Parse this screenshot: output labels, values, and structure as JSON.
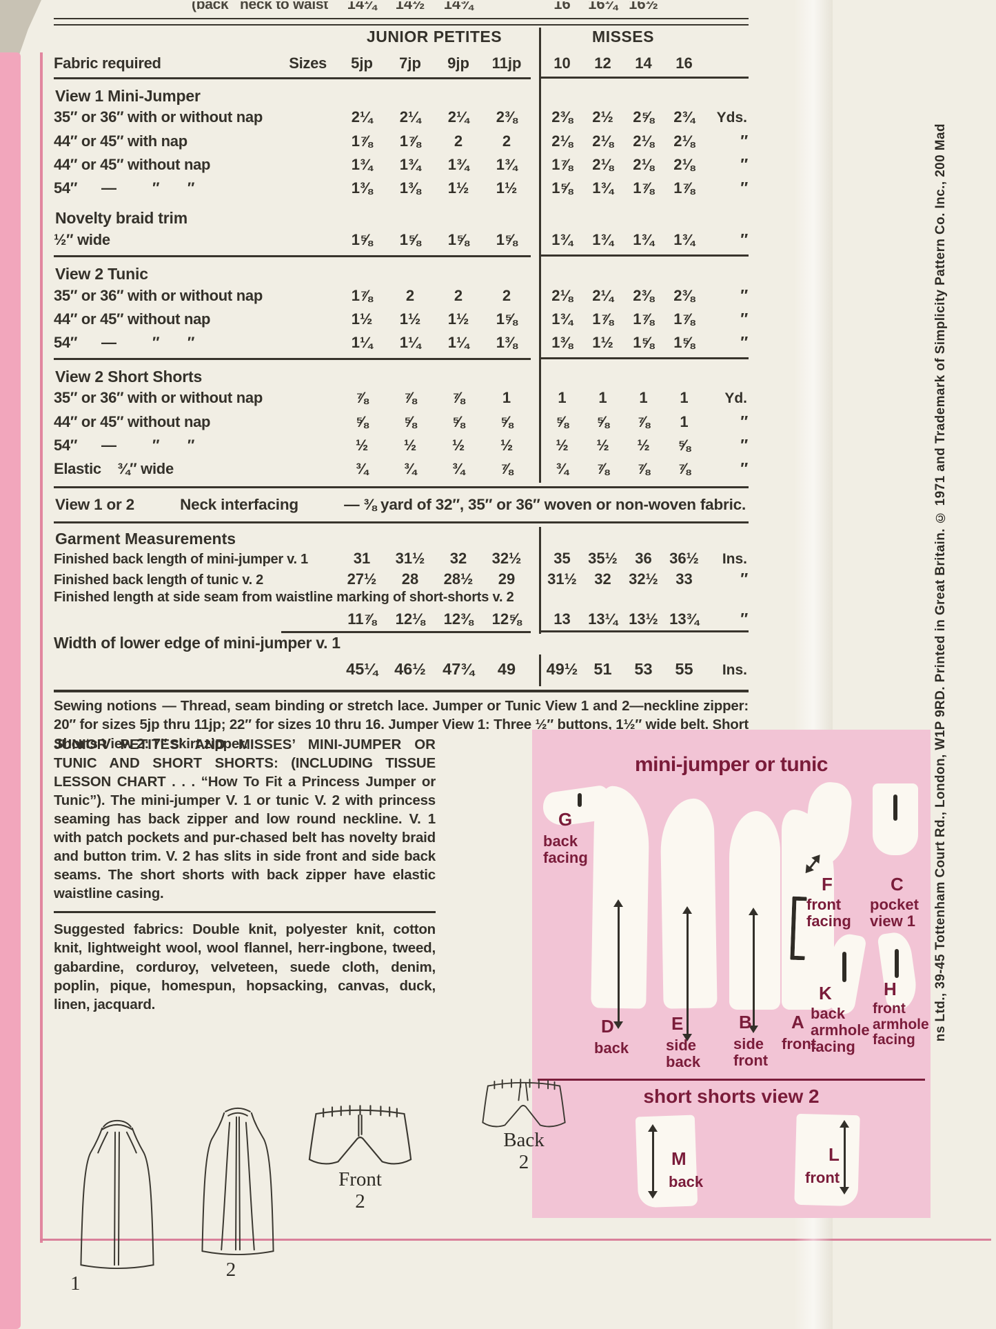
{
  "colors": {
    "paper": "#f1eee4",
    "ink": "#34312a",
    "edge_pink": "#f2a6bc",
    "frame_pink": "#e2869f",
    "panel_pink": "#f2c4d5",
    "maroon": "#7a1c3a"
  },
  "top_partial": {
    "label": "(back   neck to waist",
    "jp": [
      "14¼",
      "14½",
      "14¾"
    ],
    "misses": [
      "16",
      "16¼",
      "16½"
    ]
  },
  "fabric_table": {
    "jp_header": "JUNIOR PETITES",
    "misses_header": "MISSES",
    "label_header": "Fabric required",
    "sizes_header": "Sizes",
    "jp_sizes": [
      "5jp",
      "7jp",
      "9jp",
      "11jp"
    ],
    "misses_sizes": [
      "10",
      "12",
      "14",
      "16"
    ],
    "sections": [
      {
        "title": "View 1   Mini-Jumper",
        "rule_after": false,
        "rows": [
          {
            "label": "35″ or 36″ with or without nap",
            "jp": [
              "2¼",
              "2¼",
              "2¼",
              "2⅜"
            ],
            "m": [
              "2⅜",
              "2½",
              "2⅝",
              "2¾"
            ],
            "unit": "Yds."
          },
          {
            "label": "44″ or 45″ with nap",
            "jp": [
              "1⅞",
              "1⅞",
              "2",
              "2"
            ],
            "m": [
              "2⅛",
              "2⅛",
              "2⅛",
              "2⅛"
            ],
            "unit": "″"
          },
          {
            "label": "44″ or 45″ without nap",
            "jp": [
              "1¾",
              "1¾",
              "1¾",
              "1¾"
            ],
            "m": [
              "1⅞",
              "2⅛",
              "2⅛",
              "2⅛"
            ],
            "unit": "″"
          },
          {
            "label": "54″      —         ″       ″",
            "jp": [
              "1⅜",
              "1⅜",
              "1½",
              "1½"
            ],
            "m": [
              "1⅝",
              "1¾",
              "1⅞",
              "1⅞"
            ],
            "unit": "″"
          }
        ]
      },
      {
        "title": "Novelty braid trim",
        "rule_after": true,
        "rows": [
          {
            "label": "½″ wide",
            "jp": [
              "1⅝",
              "1⅝",
              "1⅝",
              "1⅝"
            ],
            "m": [
              "1¾",
              "1¾",
              "1¾",
              "1¾"
            ],
            "unit": "″"
          }
        ]
      },
      {
        "title": "View 2   Tunic",
        "rule_after": true,
        "rows": [
          {
            "label": "35″ or 36″ with or without nap",
            "jp": [
              "1⅞",
              "2",
              "2",
              "2"
            ],
            "m": [
              "2⅛",
              "2¼",
              "2⅜",
              "2⅜"
            ],
            "unit": "″"
          },
          {
            "label": "44″ or 45″ without nap",
            "jp": [
              "1½",
              "1½",
              "1½",
              "1⅝"
            ],
            "m": [
              "1¾",
              "1⅞",
              "1⅞",
              "1⅞"
            ],
            "unit": "″"
          },
          {
            "label": "54″      —         ″       ″",
            "jp": [
              "1¼",
              "1¼",
              "1¼",
              "1⅜"
            ],
            "m": [
              "1⅜",
              "1½",
              "1⅝",
              "1⅝"
            ],
            "unit": "″"
          }
        ]
      },
      {
        "title": "View 2   Short Shorts",
        "rule_after": false,
        "rows": [
          {
            "label": "35″ or 36″ with or without nap",
            "jp": [
              "⅞",
              "⅞",
              "⅞",
              "1"
            ],
            "m": [
              "1",
              "1",
              "1",
              "1"
            ],
            "unit": "Yd."
          },
          {
            "label": "44″ or 45″ without nap",
            "jp": [
              "⅝",
              "⅝",
              "⅝",
              "⅝"
            ],
            "m": [
              "⅝",
              "⅝",
              "⅞",
              "1"
            ],
            "unit": "″"
          },
          {
            "label": "54″      —         ″       ″",
            "jp": [
              "½",
              "½",
              "½",
              "½"
            ],
            "m": [
              "½",
              "½",
              "½",
              "⅝"
            ],
            "unit": "″"
          },
          {
            "label": "Elastic    ¾″ wide",
            "jp": [
              "¾",
              "¾",
              "¾",
              "⅞"
            ],
            "m": [
              "¾",
              "⅞",
              "⅞",
              "⅞"
            ],
            "unit": "″"
          }
        ]
      }
    ]
  },
  "interfacing": {
    "view": "View 1 or 2",
    "name": "Neck interfacing",
    "rest": "— ⅜  yard  of  32″,  35″  or  36″  woven  or  non-woven  fabric."
  },
  "measurements": {
    "title": "Garment Measurements",
    "rows": [
      {
        "label": "Finished back length of mini-jumper v. 1",
        "jp": [
          "31",
          "31½",
          "32",
          "32½"
        ],
        "m": [
          "35",
          "35½",
          "36",
          "36½"
        ],
        "unit": "Ins."
      },
      {
        "label": "Finished back length of tunic v. 2",
        "jp": [
          "27½",
          "28",
          "28½",
          "29"
        ],
        "m": [
          "31½",
          "32",
          "32½",
          "33"
        ],
        "unit": "″"
      },
      {
        "label": "Finished length at side seam from waistline marking of short-shorts v. 2",
        "label_full_row": true,
        "jp": [
          "11⅞",
          "12⅛",
          "12⅜",
          "12⅝"
        ],
        "m": [
          "13",
          "13¼",
          "13½",
          "13¾"
        ],
        "unit": "″"
      }
    ]
  },
  "width_row": {
    "label": "Width of lower edge of mini-jumper v. 1",
    "jp": [
      "45¼",
      "46½",
      "47¾",
      "49"
    ],
    "m": [
      "49½",
      "51",
      "53",
      "55"
    ],
    "unit": "Ins."
  },
  "notions": {
    "title": "Sewing notions",
    "text": "— Thread, seam binding or stretch lace. Jumper or Tunic View 1 and 2—neckline zipper: 20″ for sizes 5jp thru 11jp; 22″ for sizes 10 thru 16. Jumper View 1: Three ½″ buttons, 1½″ wide belt. Short Shorts View 2: 7″ skirt zipper."
  },
  "description": {
    "heading": "JUNIOR PETITES’ AND MISSES’ MINI-JUMPER OR TUNIC AND SHORT SHORTS:",
    "body": "(INCLUDING TISSUE LESSON CHART . . . “How To Fit a Princess Jumper or Tunic”). The mini-jumper V. 1 or tunic V. 2 with princess seaming has back zipper and low round neckline. V. 1 with patch pockets and pur-chased belt has novelty braid and button trim. V. 2 has slits in side front and side back seams. The short shorts with back zipper have elastic waistline casing.",
    "fabrics_label": "Suggested fabrics:",
    "fabrics": "Double knit, polyester knit, cotton knit, lightweight wool, wool flannel, herr-ingbone, tweed, gabardine, corduroy, velveteen, suede cloth, denim, poplin, pique, homespun, hopsacking, canvas, duck, linen, jacquard."
  },
  "diagram": {
    "title": "mini-jumper or tunic",
    "shorts_title": "short shorts view 2",
    "g_key": "G",
    "g_label": "back\nfacing",
    "d_key": "D",
    "d_label": "back",
    "e_key": "E",
    "e_label": "side\nback",
    "b_key": "B",
    "b_label": "side\nfront",
    "a_key": "A",
    "a_label": "front",
    "f_key": "F",
    "f_label": "front\nfacing",
    "c_key": "C",
    "c_label": "pocket\nview 1",
    "k_key": "K",
    "k_label": "back\narmhole\nfacing",
    "h_key": "H",
    "h_label": "front\narmhole\nfacing",
    "m_key": "M",
    "m_label": "back",
    "l_key": "L",
    "l_label": "front"
  },
  "figures": {
    "view1_num": "1",
    "view2_num": "2",
    "front_label": "Front",
    "front_num": "2",
    "back_label": "Back",
    "back_num": "2"
  },
  "margin_text": "ns Ltd.,  39-45 Tottenham Court Rd.,  London, W1P 9RD.    Printed in Great Britain.  ©  1971 and Trademark of Simplicity Pattern Co. Inc.,  200 Mad"
}
